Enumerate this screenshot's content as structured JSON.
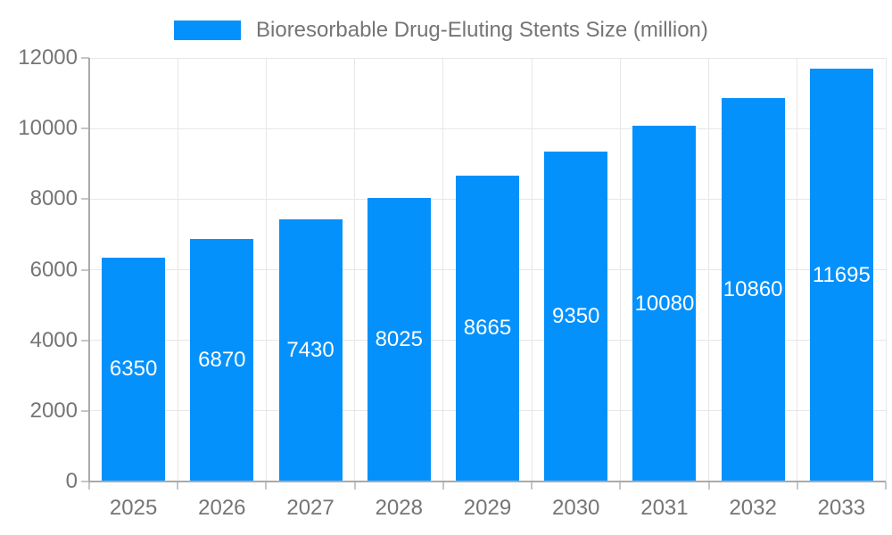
{
  "chart_data": {
    "type": "bar",
    "title": "Bioresorbable Drug-Eluting Stents Size (million)",
    "legend_position": "top",
    "categories": [
      "2025",
      "2026",
      "2027",
      "2028",
      "2029",
      "2030",
      "2031",
      "2032",
      "2033"
    ],
    "values": [
      6350,
      6870,
      7430,
      8025,
      8665,
      9350,
      10080,
      10860,
      11695
    ],
    "xlabel": "",
    "ylabel": "",
    "ylim": [
      0,
      12000
    ],
    "yticks": [
      0,
      2000,
      4000,
      6000,
      8000,
      10000,
      12000
    ],
    "grid": true,
    "colors": {
      "bar": "#0591fb",
      "grid": "#e7e7e7",
      "axis": "#aaaaaa",
      "tick": "#c6c6c6",
      "text": "#757575",
      "value_label": "#ffffff",
      "background": "#ffffff"
    }
  }
}
